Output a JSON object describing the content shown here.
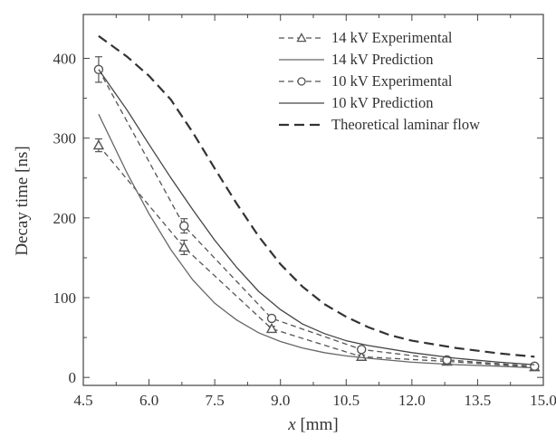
{
  "chart_data": {
    "type": "line",
    "xlabel_var": "x",
    "xlabel_unit": "[mm]",
    "ylabel": "Decay time [ns]",
    "xlim": [
      4.5,
      15.0
    ],
    "ylim": [
      -10,
      455
    ],
    "xticks": [
      "4.5",
      "6.0",
      "7.5",
      "9.0",
      "10.5",
      "12.0",
      "13.5",
      "15.0"
    ],
    "yticks": [
      "0",
      "100",
      "200",
      "300",
      "400"
    ],
    "xtick_values": [
      4.5,
      6.0,
      7.5,
      9.0,
      10.5,
      12.0,
      13.5,
      15.0
    ],
    "ytick_values": [
      0,
      100,
      200,
      300,
      400
    ],
    "legend_position": "top-right",
    "series": [
      {
        "name": "14 kV Experimental",
        "style": "dashed",
        "marker": "triangle",
        "color": "#555555",
        "x": [
          4.85,
          6.8,
          8.8,
          10.85,
          12.8,
          14.8
        ],
        "y": [
          291,
          163,
          61,
          26,
          20,
          13
        ],
        "err": [
          8,
          9,
          3,
          2,
          2,
          1
        ]
      },
      {
        "name": "14 kV Prediction",
        "style": "solid",
        "color": "#666666",
        "x": [
          4.85,
          5.5,
          6.0,
          6.5,
          7.0,
          7.5,
          8.0,
          8.5,
          9.0,
          9.5,
          10.0,
          10.5,
          11.0,
          12.0,
          13.0,
          14.0,
          14.8
        ],
        "y": [
          330,
          256,
          205,
          160,
          122,
          93,
          72,
          56,
          45,
          37,
          31,
          27,
          24,
          19,
          16,
          14,
          12
        ]
      },
      {
        "name": "10 kV Experimental",
        "style": "dashed",
        "marker": "circle",
        "color": "#555555",
        "x": [
          4.85,
          6.8,
          8.8,
          10.85,
          12.8,
          14.8
        ],
        "y": [
          386,
          190,
          74,
          35,
          22,
          14
        ],
        "err": [
          16,
          9,
          3,
          2,
          2,
          1
        ]
      },
      {
        "name": "10 kV Prediction",
        "style": "solid",
        "color": "#444444",
        "x": [
          4.85,
          5.5,
          6.0,
          6.5,
          7.0,
          7.5,
          8.0,
          8.5,
          9.0,
          9.5,
          10.0,
          10.5,
          11.0,
          12.0,
          13.0,
          14.0,
          14.8
        ],
        "y": [
          386,
          335,
          292,
          250,
          210,
          172,
          138,
          108,
          85,
          67,
          55,
          46,
          40,
          31,
          24,
          19,
          16
        ]
      },
      {
        "name": "Theoretical laminar flow",
        "style": "longdash",
        "color": "#333333",
        "x": [
          4.85,
          5.5,
          6.0,
          6.5,
          7.0,
          7.5,
          8.0,
          8.5,
          9.0,
          9.5,
          10.0,
          10.5,
          11.0,
          11.5,
          12.0,
          13.0,
          14.0,
          14.8
        ],
        "y": [
          428,
          402,
          378,
          348,
          307,
          262,
          218,
          177,
          142,
          114,
          92,
          76,
          63,
          53,
          46,
          37,
          30,
          26
        ]
      }
    ]
  }
}
